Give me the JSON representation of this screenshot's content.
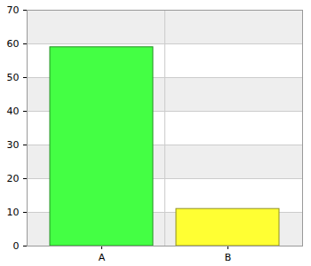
{
  "chart_data": {
    "type": "bar",
    "categories": [
      "A",
      "B"
    ],
    "values": [
      59,
      11
    ],
    "colors": [
      "#44ff44",
      "#ffff33"
    ],
    "ylim": [
      0,
      70
    ],
    "yticks": [
      0,
      10,
      20,
      30,
      40,
      50,
      60,
      70
    ],
    "grid": true
  }
}
